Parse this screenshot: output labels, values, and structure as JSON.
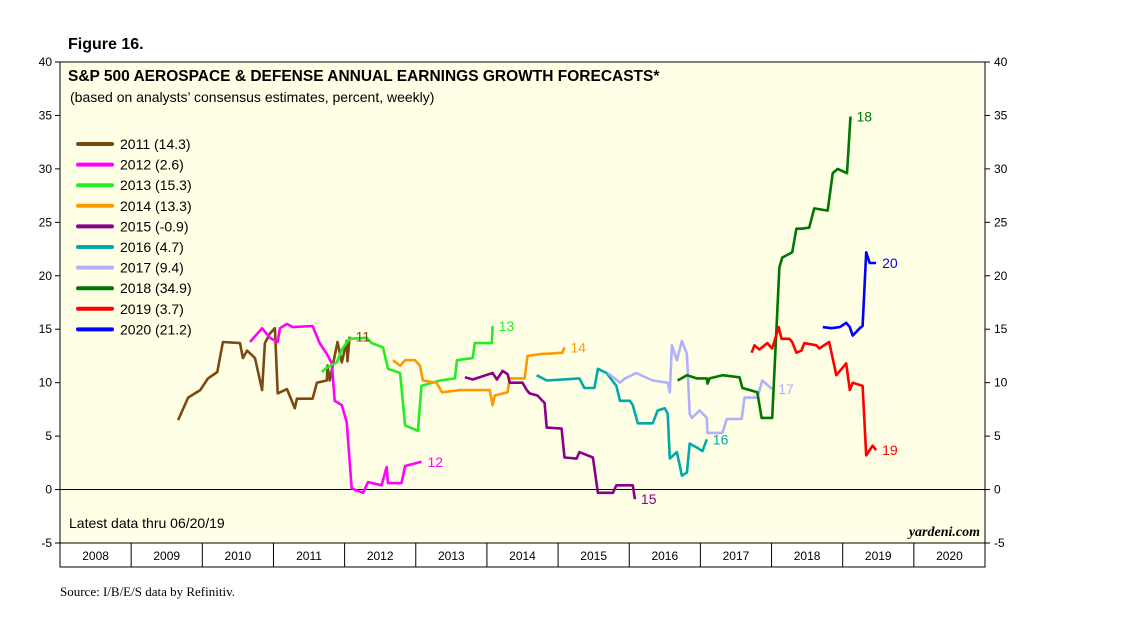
{
  "figure_label": "Figure 16.",
  "source": "Source: I/B/E/S data by Refinitiv.",
  "chart_data": {
    "type": "line",
    "title": "S&P 500 AEROSPACE & DEFENSE ANNUAL EARNINGS GROWTH FORECASTS*",
    "subtitle": "(based on analysts’ consensus estimates, percent, weekly)",
    "note": "Latest data thru 06/20/19",
    "brand": "yardeni.com",
    "ylim": [
      -5,
      40
    ],
    "yticks": [
      -5,
      0,
      5,
      10,
      15,
      20,
      25,
      30,
      35,
      40
    ],
    "xlim": [
      2008,
      2021
    ],
    "xtick_labels": [
      "2008",
      "2009",
      "2010",
      "2011",
      "2012",
      "2013",
      "2014",
      "2015",
      "2016",
      "2017",
      "2018",
      "2019",
      "2020"
    ],
    "zero_line": true,
    "legend_position": "top-left",
    "series": [
      {
        "name": "2011 (14.3)",
        "end_label": "11",
        "color": "#7B4A12",
        "x": [
          2009.66,
          2009.8,
          2009.97,
          2010.08,
          2010.21,
          2010.29,
          2010.53,
          2010.57,
          2010.63,
          2010.74,
          2010.84,
          2010.88,
          2010.95,
          2011.02,
          2011.06,
          2011.19,
          2011.3,
          2011.33,
          2011.55,
          2011.61,
          2011.75,
          2011.76,
          2011.79,
          2011.9,
          2011.96,
          2012.03,
          2012.04,
          2012.07
        ],
        "y": [
          6.5,
          8.6,
          9.3,
          10.4,
          11.0,
          13.8,
          13.7,
          12.3,
          13.0,
          12.3,
          9.3,
          13.7,
          14.6,
          15.1,
          9.0,
          9.4,
          7.6,
          8.5,
          8.5,
          10.0,
          10.2,
          11.6,
          10.2,
          13.8,
          11.9,
          13.9,
          12.0,
          14.3
        ]
      },
      {
        "name": "2012 (2.6)",
        "end_label": "12",
        "color": "#FF00FF",
        "x": [
          2010.67,
          2010.84,
          2010.95,
          2011.06,
          2011.09,
          2011.19,
          2011.27,
          2011.55,
          2011.65,
          2011.75,
          2011.82,
          2011.86,
          2011.96,
          2012.03,
          2012.1,
          2012.26,
          2012.33,
          2012.52,
          2012.59,
          2012.61,
          2012.8,
          2012.85,
          2013.08
        ],
        "y": [
          13.8,
          15.1,
          14.2,
          13.8,
          15.1,
          15.5,
          15.2,
          15.3,
          13.7,
          12.7,
          11.8,
          8.3,
          7.9,
          6.3,
          0.1,
          -0.3,
          0.7,
          0.4,
          2.1,
          0.6,
          0.6,
          2.2,
          2.6
        ]
      },
      {
        "name": "2013 (15.3)",
        "end_label": "13",
        "color": "#22EE22",
        "x": [
          2011.68,
          2011.75,
          2011.89,
          2011.97,
          2012.07,
          2012.31,
          2012.38,
          2012.54,
          2012.61,
          2012.78,
          2012.85,
          2013.03,
          2013.08,
          2013.34,
          2013.55,
          2013.58,
          2013.8,
          2013.83,
          2014.07,
          2014.08
        ],
        "y": [
          11.0,
          11.4,
          11.9,
          13.2,
          14.1,
          14.2,
          13.7,
          13.3,
          11.3,
          10.9,
          6.0,
          5.5,
          9.7,
          10.2,
          10.4,
          12.1,
          12.3,
          13.7,
          13.7,
          15.3
        ]
      },
      {
        "name": "2014 (13.3)",
        "end_label": "14",
        "color": "#FF9900",
        "x": [
          2012.68,
          2012.78,
          2012.85,
          2012.99,
          2013.06,
          2013.1,
          2013.29,
          2013.37,
          2013.62,
          2014.04,
          2014.08,
          2014.11,
          2014.29,
          2014.32,
          2014.53,
          2014.57,
          2014.78,
          2014.84,
          2015.06,
          2015.09
        ],
        "y": [
          12.1,
          11.6,
          12.1,
          12.1,
          11.6,
          10.2,
          10.0,
          9.1,
          9.3,
          9.3,
          7.9,
          8.8,
          9.1,
          10.4,
          10.4,
          12.5,
          12.7,
          12.7,
          12.8,
          13.3
        ]
      },
      {
        "name": "2015 (-0.9)",
        "end_label": "15",
        "color": "#8B008B",
        "x": [
          2013.69,
          2013.8,
          2014.08,
          2014.14,
          2014.22,
          2014.29,
          2014.32,
          2014.5,
          2014.56,
          2014.6,
          2014.71,
          2014.81,
          2014.84,
          2015.05,
          2015.09,
          2015.26,
          2015.3,
          2015.49,
          2015.56,
          2015.77,
          2015.82,
          2016.05,
          2016.08
        ],
        "y": [
          10.5,
          10.3,
          10.9,
          10.3,
          11.1,
          10.8,
          10.0,
          10.0,
          9.3,
          9.0,
          8.8,
          8.1,
          5.8,
          5.7,
          3.0,
          2.9,
          3.5,
          3.0,
          -0.3,
          -0.3,
          0.4,
          0.4,
          -0.9
        ]
      },
      {
        "name": "2016 (4.7)",
        "end_label": "16",
        "color": "#00AAAA",
        "x": [
          2014.7,
          2014.84,
          2015.3,
          2015.37,
          2015.51,
          2015.56,
          2015.68,
          2015.82,
          2015.87,
          2016.01,
          2016.05,
          2016.12,
          2016.33,
          2016.4,
          2016.5,
          2016.54,
          2016.57,
          2016.67,
          2016.74,
          2016.81,
          2016.85,
          2016.96,
          2017.03,
          2017.09
        ],
        "y": [
          10.7,
          10.2,
          10.4,
          9.5,
          9.5,
          11.3,
          10.9,
          9.7,
          8.3,
          8.3,
          7.9,
          6.2,
          6.2,
          7.4,
          7.6,
          7.1,
          2.9,
          3.5,
          1.3,
          1.6,
          4.3,
          3.9,
          3.6,
          4.7
        ]
      },
      {
        "name": "2017 (9.4)",
        "end_label": "17",
        "color": "#B0B0FF",
        "x": [
          2015.7,
          2015.87,
          2015.94,
          2016.1,
          2016.33,
          2016.54,
          2016.57,
          2016.6,
          2016.67,
          2016.74,
          2016.81,
          2016.85,
          2016.88,
          2016.99,
          2017.09,
          2017.1,
          2017.31,
          2017.37,
          2017.58,
          2017.62,
          2017.8,
          2017.87,
          2018.01
        ],
        "y": [
          10.9,
          10.0,
          10.4,
          10.9,
          10.2,
          10.0,
          9.1,
          13.5,
          12.1,
          13.9,
          12.7,
          7.1,
          6.7,
          7.4,
          6.7,
          5.3,
          5.3,
          6.6,
          6.6,
          8.6,
          8.6,
          10.2,
          9.4
        ]
      },
      {
        "name": "2018 (34.9)",
        "end_label": "18",
        "color": "#007700",
        "x": [
          2016.68,
          2016.81,
          2016.95,
          2017.09,
          2017.1,
          2017.13,
          2017.31,
          2017.55,
          2017.59,
          2017.8,
          2017.86,
          2018.01,
          2018.11,
          2018.15,
          2018.29,
          2018.35,
          2018.42,
          2018.53,
          2018.6,
          2018.79,
          2018.86,
          2018.93,
          2019.06,
          2019.11
        ],
        "y": [
          10.2,
          10.7,
          10.4,
          10.4,
          9.9,
          10.4,
          10.7,
          10.5,
          9.5,
          9.1,
          6.7,
          6.7,
          20.8,
          21.7,
          22.2,
          24.4,
          24.4,
          24.5,
          26.3,
          26.1,
          29.6,
          30.0,
          29.6,
          34.9
        ]
      },
      {
        "name": "2019 (3.7)",
        "end_label": "19",
        "color": "#FF0000",
        "x": [
          2017.72,
          2017.76,
          2017.83,
          2017.94,
          2018.01,
          2018.1,
          2018.14,
          2018.25,
          2018.29,
          2018.35,
          2018.42,
          2018.46,
          2018.63,
          2018.67,
          2018.81,
          2018.91,
          2019.05,
          2019.1,
          2019.14,
          2019.28,
          2019.33,
          2019.42,
          2019.47
        ],
        "y": [
          12.8,
          13.5,
          13.1,
          13.7,
          13.2,
          15.2,
          14.1,
          14.1,
          13.8,
          12.8,
          13.0,
          13.7,
          13.5,
          13.2,
          13.8,
          10.7,
          11.8,
          9.3,
          10.0,
          9.7,
          3.2,
          4.1,
          3.7
        ]
      },
      {
        "name": "2020 (21.2)",
        "end_label": "20",
        "color": "#0000FF",
        "x": [
          2018.72,
          2018.84,
          2018.96,
          2019.05,
          2019.1,
          2019.14,
          2019.24,
          2019.28,
          2019.33,
          2019.38,
          2019.47
        ],
        "y": [
          15.2,
          15.1,
          15.2,
          15.6,
          15.2,
          14.4,
          15.1,
          15.3,
          22.2,
          21.2,
          21.2
        ]
      }
    ]
  }
}
